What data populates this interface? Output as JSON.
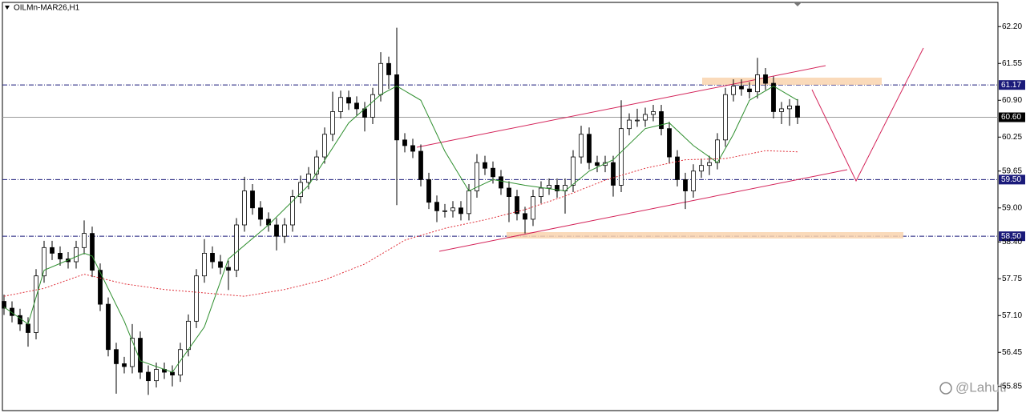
{
  "chart_data": {
    "type": "candlestick",
    "title": "OILMn-MAR26,H1",
    "watermark": "@Lahuti",
    "ylim": [
      55.38,
      62.67
    ],
    "yticks": [
      {
        "value": 62.2,
        "label": "62.20"
      },
      61.55,
      {
        "value": 60.9,
        "label": "60.90"
      },
      60.25,
      59.65,
      {
        "value": 59.0,
        "label": "59.00"
      },
      {
        "value": 58.4,
        "label": "58.40"
      },
      57.75,
      {
        "value": 57.1,
        "label": "57.10"
      },
      56.45,
      55.85
    ],
    "up_color": "#ffffff",
    "down_color": "#000000",
    "ohlc": [
      [
        57.35,
        57.47,
        57.11,
        57.23
      ],
      [
        57.23,
        57.35,
        56.98,
        57.1
      ],
      [
        57.1,
        57.22,
        56.83,
        56.95
      ],
      [
        56.95,
        57.07,
        56.55,
        56.8
      ],
      [
        56.8,
        57.92,
        56.68,
        57.8
      ],
      [
        57.8,
        58.42,
        57.68,
        58.3
      ],
      [
        58.3,
        58.42,
        58.08,
        58.2
      ],
      [
        58.2,
        58.32,
        57.98,
        58.1
      ],
      [
        58.1,
        58.22,
        57.93,
        58.05
      ],
      [
        58.05,
        58.42,
        57.93,
        58.3
      ],
      [
        58.3,
        58.78,
        58.18,
        58.55
      ],
      [
        58.55,
        58.67,
        57.78,
        57.9
      ],
      [
        57.9,
        58.02,
        57.18,
        57.3
      ],
      [
        57.3,
        57.42,
        56.38,
        56.5
      ],
      [
        56.5,
        56.62,
        55.72,
        56.25
      ],
      [
        56.25,
        56.37,
        56.08,
        56.2
      ],
      [
        56.2,
        56.95,
        56.08,
        56.7
      ],
      [
        56.7,
        56.82,
        55.98,
        56.1
      ],
      [
        56.1,
        56.22,
        55.7,
        55.95
      ],
      [
        55.95,
        56.27,
        55.83,
        56.15
      ],
      [
        56.15,
        56.27,
        55.98,
        56.1
      ],
      [
        56.1,
        56.22,
        55.85,
        56.05
      ],
      [
        56.05,
        56.62,
        55.93,
        56.5
      ],
      [
        56.5,
        57.12,
        56.38,
        57.0
      ],
      [
        57.0,
        57.92,
        56.88,
        57.8
      ],
      [
        57.8,
        58.45,
        57.68,
        58.2
      ],
      [
        58.2,
        58.32,
        57.93,
        58.05
      ],
      [
        58.05,
        58.17,
        57.83,
        57.95
      ],
      [
        57.95,
        58.07,
        57.55,
        57.9
      ],
      [
        57.9,
        58.82,
        57.78,
        58.7
      ],
      [
        58.7,
        59.55,
        58.58,
        59.3
      ],
      [
        59.3,
        59.42,
        58.88,
        59.0
      ],
      [
        59.0,
        59.12,
        58.68,
        58.8
      ],
      [
        58.8,
        58.92,
        58.58,
        58.7
      ],
      [
        58.7,
        58.82,
        58.25,
        58.5
      ],
      [
        58.5,
        58.82,
        58.38,
        58.7
      ],
      [
        58.7,
        59.32,
        58.58,
        59.2
      ],
      [
        59.2,
        59.57,
        59.08,
        59.45
      ],
      [
        59.45,
        59.72,
        59.33,
        59.6
      ],
      [
        59.6,
        60.02,
        59.48,
        59.9
      ],
      [
        59.9,
        60.42,
        59.78,
        60.3
      ],
      [
        60.3,
        61.05,
        60.18,
        60.7
      ],
      [
        60.7,
        61.07,
        60.58,
        60.95
      ],
      [
        60.95,
        61.07,
        60.73,
        60.85
      ],
      [
        60.85,
        60.97,
        60.63,
        60.75
      ],
      [
        60.75,
        60.87,
        60.35,
        60.6
      ],
      [
        60.6,
        61.12,
        60.48,
        61.0
      ],
      [
        61.0,
        61.75,
        60.88,
        61.55
      ],
      [
        61.55,
        61.67,
        61.1,
        61.35
      ],
      [
        61.35,
        62.18,
        59.05,
        60.2
      ],
      [
        60.2,
        60.32,
        59.98,
        60.1
      ],
      [
        60.1,
        60.22,
        59.88,
        60.0
      ],
      [
        60.0,
        60.12,
        59.38,
        59.5
      ],
      [
        59.5,
        59.62,
        58.98,
        59.1
      ],
      [
        59.1,
        59.22,
        58.75,
        58.95
      ],
      [
        58.95,
        59.07,
        58.83,
        58.95
      ],
      [
        58.95,
        59.12,
        58.83,
        59.0
      ],
      [
        59.0,
        59.12,
        58.78,
        58.9
      ],
      [
        58.9,
        59.42,
        58.78,
        59.3
      ],
      [
        59.3,
        59.95,
        59.18,
        59.8
      ],
      [
        59.8,
        59.92,
        59.58,
        59.7
      ],
      [
        59.7,
        59.82,
        59.43,
        59.55
      ],
      [
        59.55,
        59.67,
        59.23,
        59.35
      ],
      [
        59.35,
        59.47,
        58.75,
        59.2
      ],
      [
        59.2,
        59.32,
        58.78,
        58.9
      ],
      [
        58.9,
        59.02,
        58.55,
        58.8
      ],
      [
        58.8,
        59.32,
        58.68,
        59.2
      ],
      [
        59.2,
        59.47,
        59.08,
        59.35
      ],
      [
        59.35,
        59.52,
        59.23,
        59.4
      ],
      [
        59.4,
        59.52,
        59.18,
        59.3
      ],
      [
        59.3,
        59.52,
        58.9,
        59.4
      ],
      [
        59.4,
        60.02,
        59.28,
        59.9
      ],
      [
        59.9,
        60.45,
        59.78,
        60.3
      ],
      [
        60.3,
        60.42,
        59.68,
        59.8
      ],
      [
        59.8,
        59.92,
        59.63,
        59.75
      ],
      [
        59.75,
        59.92,
        59.63,
        59.8
      ],
      [
        59.8,
        59.92,
        59.2,
        59.4
      ],
      [
        59.4,
        60.9,
        59.28,
        60.4
      ],
      [
        60.4,
        60.67,
        60.28,
        60.55
      ],
      [
        60.55,
        60.75,
        60.43,
        60.55
      ],
      [
        60.55,
        60.77,
        60.43,
        60.65
      ],
      [
        60.65,
        60.82,
        60.53,
        60.7
      ],
      [
        60.7,
        60.82,
        60.28,
        60.4
      ],
      [
        60.4,
        60.52,
        59.78,
        59.9
      ],
      [
        59.9,
        60.02,
        59.38,
        59.5
      ],
      [
        59.5,
        59.62,
        58.98,
        59.3
      ],
      [
        59.3,
        59.77,
        59.18,
        59.65
      ],
      [
        59.65,
        59.87,
        59.53,
        59.75
      ],
      [
        59.75,
        59.92,
        59.58,
        59.8
      ],
      [
        59.8,
        60.32,
        59.68,
        60.2
      ],
      [
        60.2,
        61.12,
        60.08,
        61.0
      ],
      [
        61.0,
        61.27,
        60.88,
        61.15
      ],
      [
        61.15,
        61.27,
        60.98,
        61.1
      ],
      [
        61.1,
        61.22,
        60.93,
        61.05
      ],
      [
        61.05,
        61.65,
        60.93,
        61.35
      ],
      [
        61.35,
        61.47,
        61.08,
        61.2
      ],
      [
        61.2,
        61.32,
        60.58,
        60.7
      ],
      [
        60.7,
        60.87,
        60.48,
        60.75
      ],
      [
        60.75,
        60.92,
        60.45,
        60.8
      ],
      [
        60.8,
        60.92,
        60.48,
        60.6
      ]
    ],
    "moving_averages": [
      {
        "color": "#2f8f2f",
        "style": "solid",
        "x": [
          0,
          3,
          5,
          10,
          11,
          15,
          17,
          21,
          25,
          28,
          33,
          38,
          43,
          47,
          49,
          52,
          55,
          58,
          61,
          65,
          70,
          73,
          76,
          80,
          83,
          86,
          89,
          91,
          93,
          96,
          99
        ],
        "values": [
          57.25,
          56.95,
          57.9,
          58.2,
          58.15,
          57.0,
          56.3,
          56.1,
          56.9,
          58.1,
          58.7,
          59.4,
          60.5,
          61.0,
          61.15,
          60.9,
          60.0,
          59.3,
          59.5,
          59.4,
          59.3,
          59.65,
          59.85,
          60.4,
          60.5,
          60.1,
          59.8,
          60.3,
          60.9,
          61.15,
          60.9
        ]
      },
      {
        "color": "#e0303a",
        "style": "dotted",
        "x": [
          0,
          5,
          10,
          15,
          20,
          25,
          30,
          35,
          40,
          45,
          50,
          55,
          60,
          65,
          70,
          75,
          80,
          85,
          90,
          95,
          99
        ],
        "values": [
          57.44,
          57.58,
          57.83,
          57.66,
          57.56,
          57.5,
          57.44,
          57.56,
          57.73,
          58.01,
          58.43,
          58.64,
          58.79,
          58.97,
          59.21,
          59.49,
          59.7,
          59.85,
          59.87,
          60.01,
          59.99
        ]
      }
    ],
    "levels": [
      {
        "value": 61.17,
        "label": "61.17",
        "color": "#1a1a7a",
        "style": "dashdot"
      },
      {
        "value": 60.6,
        "label": "60.60",
        "color": "#000000",
        "style": "solid"
      },
      {
        "value": 59.5,
        "label": "59.50",
        "color": "#1a1a7a",
        "style": "dashdot"
      },
      {
        "value": 58.5,
        "label": "58.50",
        "color": "#1a1a7a",
        "style": "dashdot"
      }
    ]
  }
}
